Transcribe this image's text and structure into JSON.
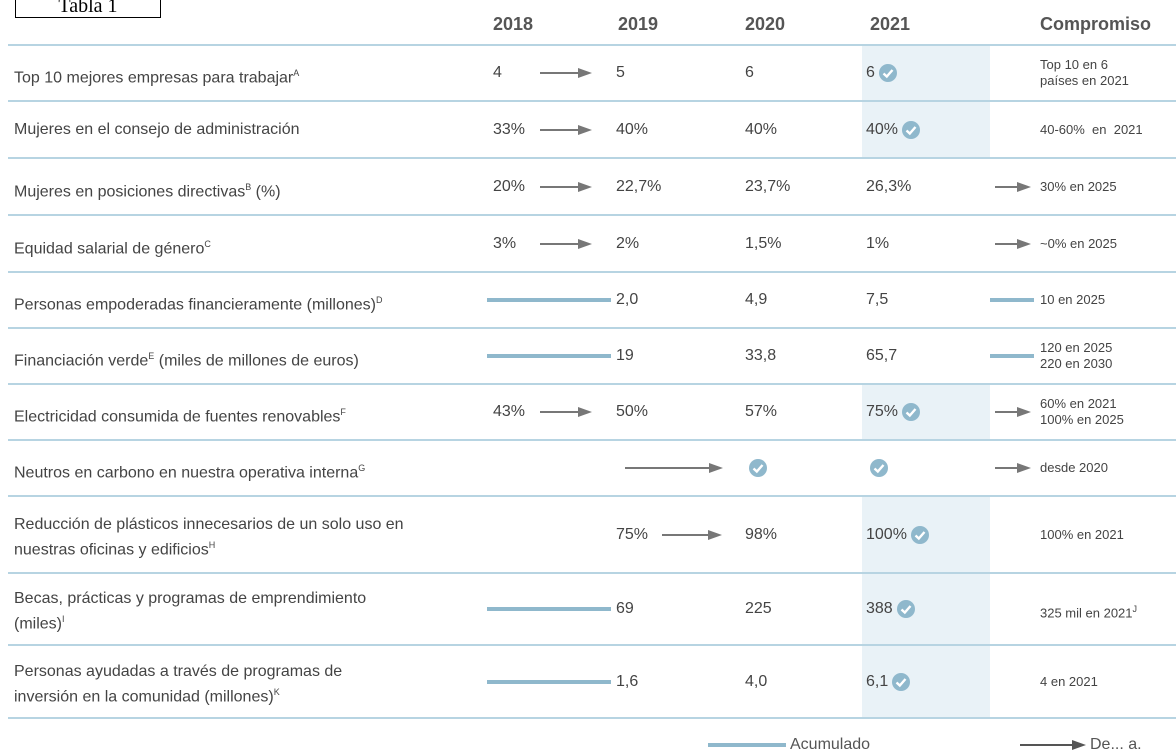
{
  "label": "Tabla 1",
  "headers": [
    "2018",
    "2019",
    "2020",
    "2021",
    "Compromiso"
  ],
  "rows": [
    {
      "label": [
        "Top 10 mejores empresas para trabajar"
      ],
      "sup": "A",
      "values": [
        "4",
        "5",
        "6",
        "6"
      ],
      "commitment": [
        "Top 10 en 6",
        "países en 2021"
      ]
    },
    {
      "label": [
        "Mujeres en el consejo de administración"
      ],
      "values": [
        "33%",
        "40%",
        "40%",
        "40%"
      ],
      "commitment": [
        "40-60%  en  2021"
      ]
    },
    {
      "label": [
        "Mujeres en posiciones directivas"
      ],
      "sup": "B",
      "suffix": " (%)",
      "values": [
        "20%",
        "22,7%",
        "23,7%",
        "26,3%"
      ],
      "commitment": [
        "30% en 2025"
      ]
    },
    {
      "label": [
        "Equidad salarial de género"
      ],
      "sup": "C",
      "values": [
        "3%",
        "2%",
        "1,5%",
        "1%"
      ],
      "commitment": [
        "~0% en 2025"
      ]
    },
    {
      "label": [
        "Personas empoderadas financieramente (millones)"
      ],
      "sup": "D",
      "values": [
        null,
        "2,0",
        "4,9",
        "7,5"
      ],
      "commitment": [
        "10 en 2025"
      ]
    },
    {
      "label": [
        "Financiación verde"
      ],
      "sup": "E",
      "suffix": " (miles de millones de euros)",
      "values": [
        null,
        "19",
        "33,8",
        "65,7"
      ],
      "commitment": [
        "120 en 2025",
        "220 en 2030"
      ]
    },
    {
      "label": [
        "Electricidad consumida de fuentes renovables"
      ],
      "sup": "F",
      "values": [
        "43%",
        "50%",
        "57%",
        "75%"
      ],
      "commitment": [
        "60% en 2021",
        "100% en 2025"
      ]
    },
    {
      "label": [
        "Neutros en carbono en nuestra operativa interna"
      ],
      "sup": "G",
      "values": [
        null,
        null,
        null,
        null
      ],
      "commitment": [
        "desde 2020"
      ]
    },
    {
      "label": [
        "Reducción de plásticos innecesarios de un solo uso en",
        "nuestras oficinas y edificios"
      ],
      "sup": "H",
      "values": [
        null,
        "75%",
        "98%",
        "100%"
      ],
      "commitment": [
        "100% en 2021"
      ]
    },
    {
      "label": [
        "Becas, prácticas y programas de emprendimiento",
        "(miles)"
      ],
      "sup": "I",
      "values": [
        null,
        "69",
        "225",
        "388"
      ],
      "commitment": [
        "325 mil en 2021"
      ],
      "commitment_sup": "J"
    },
    {
      "label": [
        "Personas ayudadas a través de programas de",
        "inversión en la comunidad (millones)"
      ],
      "sup": "K",
      "values": [
        null,
        "1,6",
        "4,0",
        "6,1"
      ],
      "commitment": [
        "4 en 2021"
      ]
    }
  ],
  "legend": [
    "Acumulado",
    "De... a."
  ]
}
